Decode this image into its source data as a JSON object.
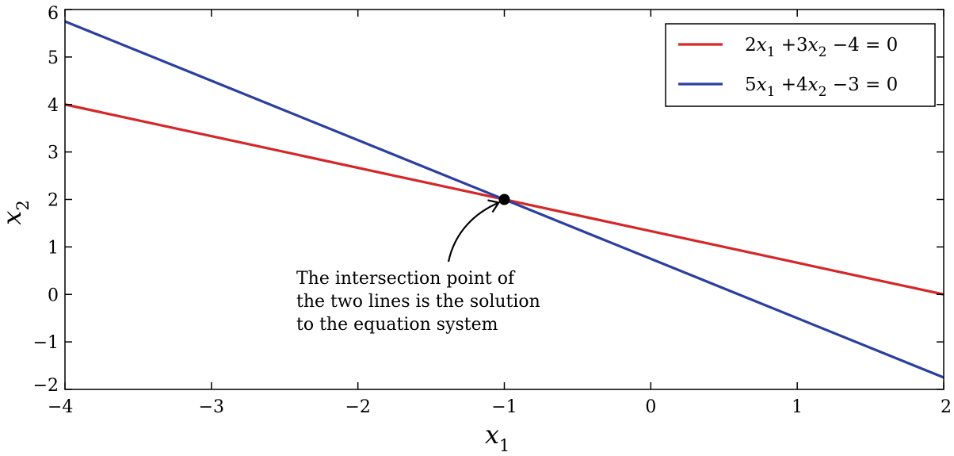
{
  "chart_data": {
    "type": "line",
    "xlim": [
      -4,
      2
    ],
    "ylim": [
      -2,
      6
    ],
    "x_ticks": [
      -4,
      -3,
      -2,
      -1,
      0,
      1,
      2
    ],
    "y_ticks": [
      -2,
      -1,
      0,
      1,
      2,
      3,
      4,
      5,
      6
    ],
    "x_tick_labels": [
      "−4",
      "−3",
      "−2",
      "−1",
      "0",
      "1",
      "2"
    ],
    "y_tick_labels": [
      "−2",
      "−1",
      "0",
      "1",
      "2",
      "3",
      "4",
      "5",
      "6"
    ],
    "xlabel": {
      "base": "x",
      "sub": "1"
    },
    "ylabel": {
      "base": "x",
      "sub": "2"
    },
    "grid": false,
    "legend_position": "top-right",
    "series": [
      {
        "name": "2x₁ + 3x₂ − 4 = 0",
        "legend_parts": [
          "2",
          "x",
          "1",
          " +3",
          "x",
          "2",
          " −4 = 0"
        ],
        "color": "#d62728",
        "x": [
          -4,
          2
        ],
        "y": [
          4.0,
          0.0
        ]
      },
      {
        "name": "5x₁ + 4x₂ − 3 = 0",
        "legend_parts": [
          "5",
          "x",
          "1",
          " +4",
          "x",
          "2",
          " −3 = 0"
        ],
        "color": "#2b3fa0",
        "x": [
          -4,
          2
        ],
        "y": [
          5.75,
          -1.75
        ]
      }
    ],
    "points": [
      {
        "x": -1,
        "y": 2,
        "color": "#000000"
      }
    ],
    "annotation": {
      "lines": [
        "The intersection point of",
        "the two lines is the solution",
        "to the equation system"
      ],
      "target": {
        "x": -1,
        "y": 2
      }
    }
  }
}
